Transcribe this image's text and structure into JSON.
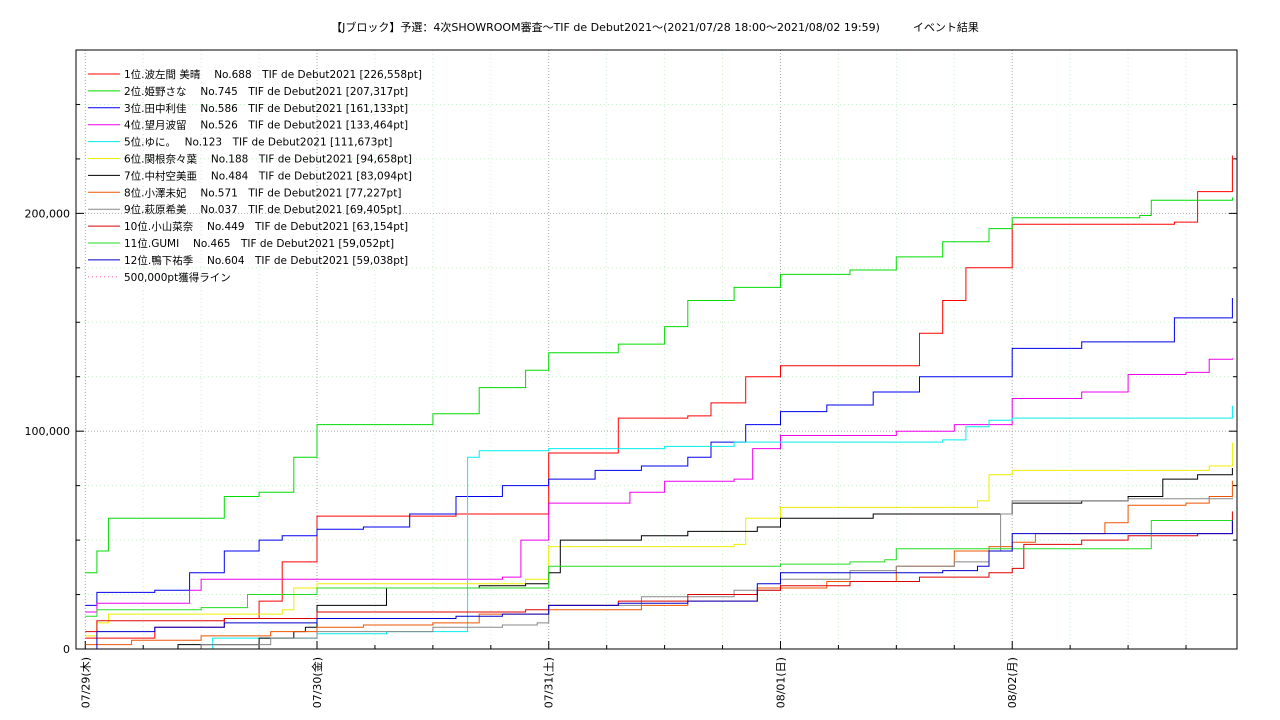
{
  "chart_data": {
    "type": "line",
    "title": "【Jブロック】予選：4次SHOWROOM審査〜TIF de Debut2021〜(2021/07/28 18:00〜2021/08/02 19:59)　　　イベント結果",
    "xlabel": "",
    "ylabel": "",
    "x_tick_labels": [
      "07/29(木)",
      "07/30(金)",
      "07/31(土)",
      "08/01(日)",
      "08/02(月)"
    ],
    "x_tick_values": [
      1,
      2,
      3,
      4,
      5
    ],
    "xlim": [
      0.96,
      5.97
    ],
    "y_tick_labels": [
      "0",
      "100,000",
      "200,000"
    ],
    "y_tick_values": [
      0,
      100000,
      200000
    ],
    "ylim": [
      0,
      275000
    ],
    "grid": true,
    "legend_position": "top-left",
    "series": [
      {
        "name": "1位.波左間 美晴　 No.688　TIF de Debut2021 [226,558pt]",
        "color": "#ff0000",
        "x": [
          1.0,
          1.3,
          1.6,
          1.75,
          1.85,
          2.0,
          2.2,
          2.6,
          3.0,
          3.3,
          3.6,
          3.7,
          3.85,
          4.0,
          4.2,
          4.5,
          4.6,
          4.7,
          4.8,
          5.0,
          5.2,
          5.5,
          5.7,
          5.8,
          5.95
        ],
        "y": [
          5000,
          10000,
          14000,
          22000,
          40000,
          61000,
          61000,
          62000,
          90000,
          106000,
          107000,
          113000,
          125000,
          130000,
          130000,
          130000,
          145000,
          160000,
          175000,
          195000,
          195000,
          195000,
          196000,
          210000,
          226558
        ]
      },
      {
        "name": "2位.姫野さな　 No.745　TIF de Debut2021 [207,317pt]",
        "color": "#00dd00",
        "x": [
          1.0,
          1.05,
          1.1,
          1.3,
          1.5,
          1.6,
          1.75,
          1.9,
          2.0,
          2.3,
          2.5,
          2.7,
          2.9,
          3.0,
          3.3,
          3.5,
          3.6,
          3.8,
          4.0,
          4.3,
          4.5,
          4.7,
          4.9,
          5.0,
          5.3,
          5.55,
          5.6,
          5.95
        ],
        "y": [
          35000,
          45000,
          60000,
          60000,
          60000,
          70000,
          72000,
          88000,
          103000,
          103000,
          108000,
          120000,
          128000,
          136000,
          140000,
          148000,
          160000,
          166000,
          172000,
          174000,
          180000,
          187000,
          193000,
          198000,
          198000,
          199000,
          206000,
          207317
        ]
      },
      {
        "name": "3位.田中利佳　 No.586　TIF de Debut2021 [161,133pt]",
        "color": "#0000ee",
        "x": [
          1.0,
          1.05,
          1.3,
          1.45,
          1.6,
          1.75,
          1.85,
          2.0,
          2.2,
          2.4,
          2.6,
          2.8,
          3.0,
          3.2,
          3.4,
          3.6,
          3.7,
          3.85,
          4.0,
          4.2,
          4.4,
          4.6,
          4.8,
          5.0,
          5.3,
          5.5,
          5.7,
          5.95
        ],
        "y": [
          20000,
          26000,
          27000,
          35000,
          45000,
          50000,
          52000,
          55000,
          56000,
          62000,
          70000,
          75000,
          78000,
          82000,
          84000,
          88000,
          95000,
          103000,
          109000,
          112000,
          118000,
          125000,
          125000,
          138000,
          141000,
          141000,
          152000,
          161133
        ]
      },
      {
        "name": "4位.望月波留　 No.526　TIF de Debut2021 [133,464pt]",
        "color": "#ee00ee",
        "x": [
          1.0,
          1.05,
          1.3,
          1.45,
          1.5,
          1.75,
          2.0,
          2.3,
          2.6,
          2.8,
          2.88,
          3.0,
          3.2,
          3.35,
          3.5,
          3.8,
          3.88,
          4.0,
          4.5,
          4.75,
          4.85,
          5.0,
          5.3,
          5.5,
          5.75,
          5.85,
          5.95
        ],
        "y": [
          17000,
          21000,
          21000,
          27000,
          32000,
          32000,
          32000,
          32000,
          32000,
          33000,
          50000,
          67000,
          67000,
          72000,
          77000,
          78000,
          92000,
          98000,
          100000,
          103000,
          103000,
          115000,
          118000,
          126000,
          127000,
          133000,
          133464
        ]
      },
      {
        "name": "5位.ゆに。　 No.123　TIF de Debut2021 [111,673pt]",
        "color": "#00eeee",
        "x": [
          1.0,
          1.5,
          1.55,
          2.0,
          2.3,
          2.65,
          2.65,
          2.7,
          3.0,
          3.5,
          3.8,
          4.0,
          4.3,
          4.5,
          4.7,
          4.8,
          4.9,
          5.0,
          5.4,
          5.7,
          5.9,
          5.95
        ],
        "y": [
          0,
          0,
          5000,
          7000,
          8000,
          9000,
          88000,
          91000,
          92000,
          93000,
          95000,
          95000,
          95000,
          95000,
          96000,
          102000,
          105000,
          106000,
          106000,
          106000,
          106000,
          111673
        ]
      },
      {
        "name": "6位.関根奈々葉　 No.188　TIF de Debut2021 [94,658pt]",
        "color": "#eeee00",
        "x": [
          1.0,
          1.05,
          1.1,
          1.5,
          1.75,
          1.85,
          1.9,
          2.0,
          2.5,
          2.9,
          3.0,
          3.3,
          3.6,
          3.8,
          3.85,
          4.0,
          4.5,
          4.85,
          4.9,
          5.0,
          5.3,
          5.5,
          5.85,
          5.95
        ],
        "y": [
          6000,
          12000,
          16000,
          16000,
          16000,
          18000,
          28000,
          30000,
          30000,
          32000,
          47000,
          47000,
          47000,
          48000,
          60000,
          65000,
          65000,
          68000,
          80000,
          82000,
          82000,
          82000,
          84000,
          94658
        ]
      },
      {
        "name": "7位.中村空美亜　 No.484　TIF de Debut2021 [83,094pt]",
        "color": "#000000",
        "x": [
          1.0,
          1.4,
          1.75,
          1.9,
          1.95,
          2.0,
          2.3,
          2.5,
          2.7,
          2.9,
          3.0,
          3.05,
          3.4,
          3.6,
          3.9,
          4.0,
          4.4,
          4.6,
          4.8,
          5.0,
          5.3,
          5.5,
          5.65,
          5.8,
          5.95
        ],
        "y": [
          0,
          2000,
          5000,
          8000,
          10000,
          20000,
          28000,
          28000,
          29000,
          30000,
          35000,
          50000,
          52000,
          54000,
          56000,
          60000,
          62000,
          62000,
          62000,
          67000,
          68000,
          70000,
          78000,
          80000,
          83094
        ]
      },
      {
        "name": "8位.小澤未妃　 No.571　TIF de Debut2021 [77,227pt]",
        "color": "#ee5500",
        "x": [
          1.0,
          1.2,
          1.5,
          1.8,
          2.0,
          2.2,
          2.5,
          2.7,
          3.0,
          3.4,
          3.6,
          3.9,
          4.2,
          4.5,
          4.75,
          4.9,
          5.0,
          5.1,
          5.4,
          5.5,
          5.75,
          5.85,
          5.95
        ],
        "y": [
          2000,
          4000,
          6000,
          8000,
          10000,
          11000,
          12000,
          16000,
          18000,
          20000,
          22000,
          28000,
          31000,
          38000,
          45000,
          47000,
          49000,
          53000,
          58000,
          66000,
          67000,
          70000,
          77227
        ]
      },
      {
        "name": "9位.萩原希美　 No.037　TIF de Debut2021 [69,405pt]",
        "color": "#888888",
        "x": [
          1.0,
          1.5,
          1.8,
          2.0,
          2.5,
          2.8,
          2.95,
          3.0,
          3.4,
          3.8,
          4.0,
          4.3,
          4.5,
          4.75,
          4.9,
          4.95,
          5.0,
          5.5,
          5.95
        ],
        "y": [
          0,
          2000,
          5000,
          8000,
          10000,
          11000,
          12000,
          20000,
          24000,
          27000,
          32000,
          36000,
          38000,
          40000,
          45000,
          62000,
          68000,
          69000,
          69405
        ]
      },
      {
        "name": "10位.小山菜奈　 No.449　TIF de Debut2021 [63,154pt]",
        "color": "#dd0000",
        "x": [
          1.0,
          1.05,
          1.3,
          1.6,
          2.0,
          2.3,
          2.6,
          2.9,
          3.0,
          3.3,
          3.6,
          3.9,
          4.0,
          4.3,
          4.6,
          4.9,
          5.0,
          5.05,
          5.3,
          5.5,
          5.8,
          5.95
        ],
        "y": [
          8000,
          13000,
          13000,
          14000,
          17000,
          17000,
          17000,
          18000,
          20000,
          22000,
          25000,
          27000,
          29000,
          31000,
          33000,
          35000,
          37000,
          48000,
          50000,
          52000,
          53000,
          63154
        ]
      },
      {
        "name": "11位.GUMI　 No.465　TIF de Debut2021 [59,052pt]",
        "color": "#22dd22",
        "x": [
          1.0,
          1.05,
          1.3,
          1.5,
          1.7,
          2.0,
          2.3,
          2.6,
          2.9,
          3.0,
          3.3,
          3.6,
          4.0,
          4.3,
          4.45,
          4.5,
          4.8,
          5.0,
          5.3,
          5.55,
          5.6,
          5.95
        ],
        "y": [
          15000,
          18000,
          18000,
          19000,
          25000,
          28000,
          28000,
          28000,
          28000,
          38000,
          38000,
          38000,
          39000,
          40000,
          41000,
          46000,
          46000,
          46000,
          46000,
          46000,
          59000,
          59052
        ]
      },
      {
        "name": "12位.鴨下祐季　 No.604　TIF de Debut2021 [59,038pt]",
        "color": "#0000cc",
        "x": [
          1.0,
          1.05,
          1.3,
          1.6,
          2.0,
          2.3,
          2.6,
          2.8,
          3.0,
          3.3,
          3.6,
          3.85,
          3.9,
          4.0,
          4.3,
          4.7,
          4.85,
          4.9,
          5.0,
          5.3,
          5.6,
          5.9,
          5.95
        ],
        "y": [
          0,
          8000,
          10000,
          12000,
          14000,
          14000,
          15000,
          16000,
          20000,
          21000,
          22000,
          22000,
          30000,
          35000,
          35000,
          36000,
          38000,
          45000,
          53000,
          53000,
          53000,
          53000,
          59038
        ]
      },
      {
        "name": "500,000pt獲得ライン",
        "color": "#ff66aa",
        "dotted": true,
        "x": [],
        "y": []
      }
    ]
  }
}
